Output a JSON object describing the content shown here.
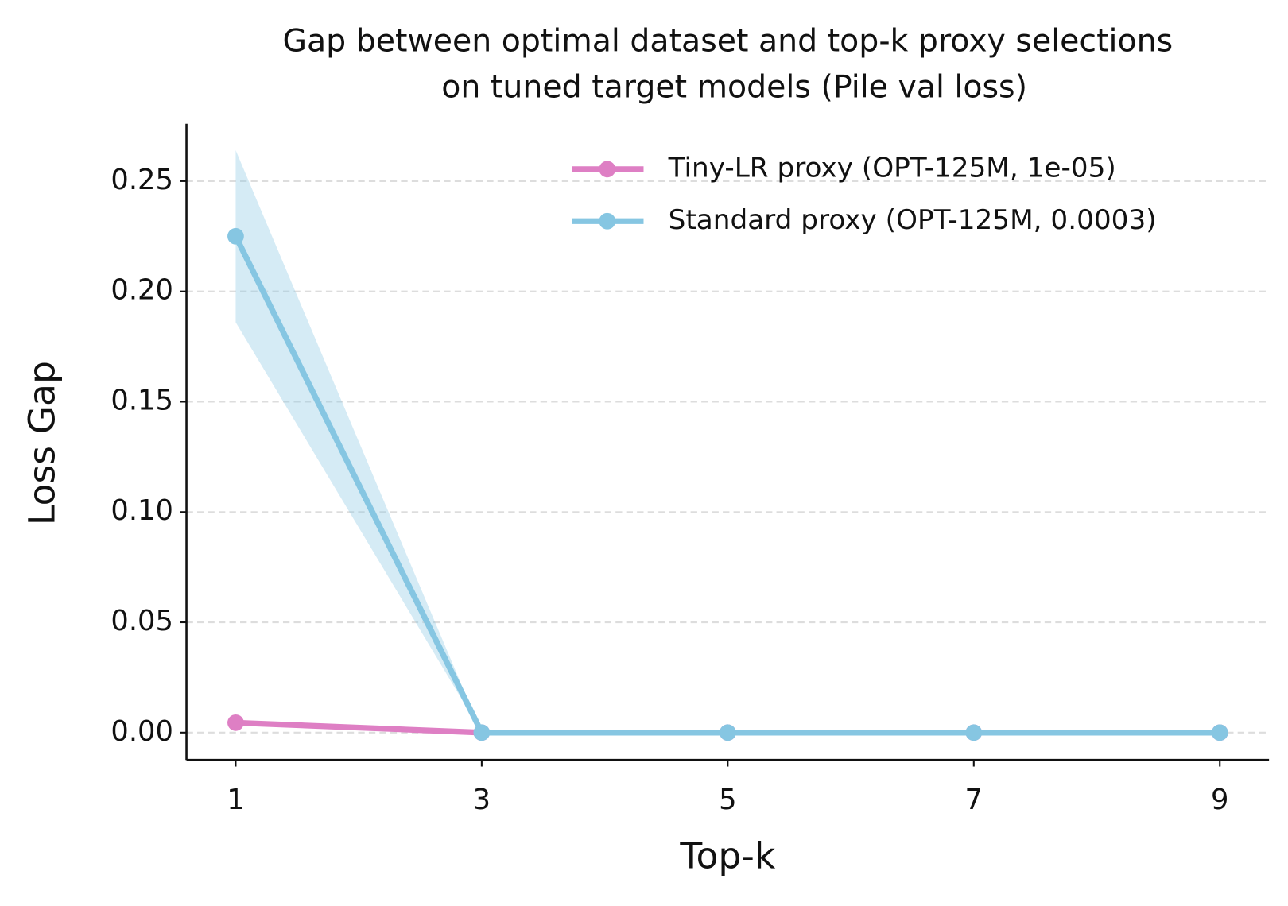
{
  "chart_data": {
    "type": "line",
    "title": [
      "Gap between optimal dataset and top-k proxy selections",
      "on tuned target models (Pile val loss)"
    ],
    "xlabel": "Top-k",
    "ylabel": "Loss Gap",
    "x": [
      1,
      3,
      5,
      7,
      9
    ],
    "series": [
      {
        "name": "Tiny-LR proxy (OPT-125M, 1e-05)",
        "color": "#de7fc4",
        "values": [
          0.0045,
          0,
          0,
          0,
          0
        ]
      },
      {
        "name": "Standard proxy (OPT-125M, 0.0003)",
        "color": "#86c6e2",
        "values": [
          0.225,
          0,
          0,
          0,
          0
        ],
        "lower": [
          0.186,
          0,
          0,
          0,
          0
        ],
        "upper": [
          0.264,
          0,
          0,
          0,
          0
        ]
      }
    ],
    "xlim": [
      0.6,
      9.4
    ],
    "ylim": [
      -0.0124,
      0.276
    ],
    "xticks": [
      1,
      3,
      5,
      7,
      9
    ],
    "yticks": [
      {
        "value": 0,
        "label": "0.00"
      },
      0.05,
      {
        "value": 0.1,
        "label": "0.10"
      },
      0.15,
      {
        "value": 0.2,
        "label": "0.20"
      },
      0.25
    ],
    "grid": true,
    "legend": "upper right"
  }
}
